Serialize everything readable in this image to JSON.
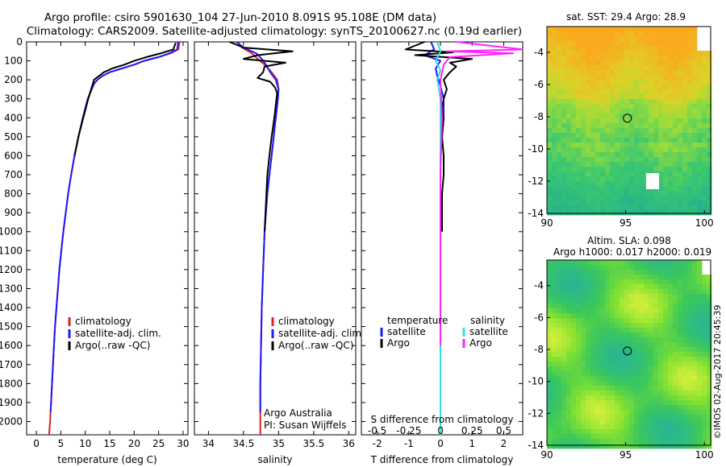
{
  "title_line1": "Argo profile: csiro 5901630_104 27-Jun-2010 8.091S 95.108E (DM data)",
  "title_line2": "Climatology: CARS2009. Satellite-adjusted climatology: synTS_20100627.nc (0.19d earlier)",
  "credit": "Argo Australia",
  "pi": "PI: Susan Wijffels",
  "stamp": "©IMOS 02-Aug-2017 20:45:39",
  "colors": {
    "climatology": "#e02020",
    "satellite": "#1a1aff",
    "argo": "#000000",
    "salinity_sat": "#30e0e0",
    "salinity_argo": "#ff20ff"
  },
  "chart_data": [
    {
      "id": "temperature",
      "type": "line",
      "xlabel": "temperature (deg C)",
      "ylabel": "",
      "xlim": [
        -2,
        31
      ],
      "ylim": [
        2070,
        0
      ],
      "xticks": [
        "0",
        "5",
        "10",
        "15",
        "20",
        "25",
        "30"
      ],
      "xtick_values": [
        0,
        5,
        10,
        15,
        20,
        25,
        30
      ],
      "yticks": [
        "0",
        "100",
        "200",
        "300",
        "400",
        "500",
        "600",
        "700",
        "800",
        "900",
        "1000",
        "1100",
        "1200",
        "1300",
        "1400",
        "1500",
        "1600",
        "1700",
        "1800",
        "1900",
        "2000"
      ],
      "ytick_values": [
        0,
        100,
        200,
        300,
        400,
        500,
        600,
        700,
        800,
        900,
        1000,
        1100,
        1200,
        1300,
        1400,
        1500,
        1600,
        1700,
        1800,
        1900,
        2000
      ],
      "legend": [
        "climatology",
        "satellite-adj. clim.",
        "Argo(..raw -QC)"
      ],
      "series": [
        {
          "name": "climatology",
          "color": "#e02020",
          "x": [
            29.3,
            29.0,
            27.5,
            25,
            22,
            20,
            17.5,
            15,
            13.5,
            12.5,
            11.8,
            10.5,
            9.5,
            8.6,
            7.8,
            7.1,
            6.5,
            6.0,
            5.5,
            5.1,
            4.7,
            4.4,
            4.1,
            3.8,
            3.6,
            3.4,
            3.2,
            3.0,
            2.9,
            2.8,
            2.7,
            2.6
          ],
          "y": [
            0,
            40,
            60,
            80,
            100,
            120,
            140,
            160,
            180,
            200,
            220,
            300,
            400,
            500,
            600,
            700,
            800,
            900,
            1000,
            1100,
            1200,
            1300,
            1400,
            1500,
            1600,
            1700,
            1800,
            1900,
            1950,
            2000,
            2030,
            2070
          ]
        },
        {
          "name": "satellite-adj. clim.",
          "color": "#1a1aff",
          "x": [
            29.0,
            28.8,
            27.2,
            25,
            22,
            20,
            17.5,
            15,
            13.5,
            12.5,
            11.8,
            10.5,
            9.5,
            8.6,
            7.8,
            7.1,
            6.5,
            6.0,
            5.5,
            5.1,
            4.7,
            4.4,
            4.1,
            3.8,
            3.6,
            3.4,
            3.2,
            3.0,
            2.9
          ],
          "y": [
            0,
            40,
            60,
            80,
            100,
            120,
            140,
            160,
            180,
            200,
            220,
            300,
            400,
            500,
            600,
            700,
            800,
            900,
            1000,
            1100,
            1200,
            1300,
            1400,
            1500,
            1600,
            1700,
            1800,
            1900,
            1950
          ]
        },
        {
          "name": "Argo(..raw -QC)",
          "color": "#000000",
          "x": [
            28.5,
            28.0,
            25.5,
            22.5,
            20,
            18,
            15.5,
            13.8,
            12.8,
            11.8,
            10.6,
            9.6,
            8.6,
            7.8
          ],
          "y": [
            5,
            40,
            60,
            80,
            100,
            120,
            140,
            160,
            180,
            200,
            300,
            400,
            500,
            600
          ]
        }
      ]
    },
    {
      "id": "salinity",
      "type": "line",
      "xlabel": "salinity",
      "xlim": [
        33.8,
        36.1
      ],
      "ylim": [
        2070,
        0
      ],
      "xticks": [
        "34",
        "34.5",
        "35",
        "35.5",
        "36"
      ],
      "xtick_values": [
        34,
        34.5,
        35,
        35.5,
        36
      ],
      "legend": [
        "climatology",
        "satellite-adj. clim.",
        "Argo(..raw -QC)"
      ],
      "series": [
        {
          "name": "climatology",
          "color": "#e02020",
          "x": [
            34.42,
            34.48,
            34.62,
            34.7,
            34.8,
            34.9,
            34.98,
            35.0,
            34.99,
            34.96,
            34.93,
            34.9,
            34.87,
            34.84,
            34.82,
            34.8,
            34.78,
            34.76,
            34.75,
            34.74,
            34.74
          ],
          "y": [
            0,
            30,
            60,
            90,
            120,
            160,
            200,
            250,
            300,
            400,
            500,
            600,
            700,
            800,
            900,
            1000,
            1200,
            1400,
            1600,
            1800,
            2070
          ]
        },
        {
          "name": "satellite-adj. clim.",
          "color": "#1a1aff",
          "x": [
            34.4,
            34.5,
            34.68,
            34.76,
            34.82,
            34.88,
            34.96,
            35.0,
            34.99,
            34.96,
            34.93,
            34.9,
            34.87,
            34.84,
            34.82,
            34.8,
            34.78,
            34.76,
            34.75,
            34.74,
            34.74
          ],
          "y": [
            0,
            30,
            60,
            90,
            120,
            160,
            200,
            250,
            300,
            400,
            500,
            600,
            700,
            800,
            900,
            1000,
            1200,
            1400,
            1600,
            1800,
            1950
          ]
        },
        {
          "name": "Argo(..raw -QC)",
          "color": "#000000",
          "x": [
            34.3,
            34.5,
            35.2,
            34.7,
            34.5,
            35.1,
            34.8,
            34.78,
            34.7,
            34.88,
            34.95,
            34.98,
            34.97,
            34.94,
            34.9,
            34.87,
            34.84,
            34.8
          ],
          "y": [
            0,
            30,
            50,
            70,
            90,
            110,
            130,
            160,
            190,
            210,
            240,
            270,
            300,
            400,
            500,
            600,
            700,
            1000
          ]
        }
      ]
    },
    {
      "id": "difference",
      "type": "line",
      "xlabel": "T difference from climatology",
      "xlabel_top": "S difference from climatology",
      "xlim": [
        -2.5,
        2.6
      ],
      "ylim": [
        2070,
        0
      ],
      "xticks": [
        "-2",
        "-1",
        "0",
        "1",
        "2"
      ],
      "xtick_values": [
        -2,
        -1,
        0,
        1,
        2
      ],
      "sticks": [
        "-0.5",
        "-0.25",
        "0",
        "0.25",
        "0.5"
      ],
      "stick_values": [
        -2,
        -1,
        0,
        1,
        2
      ],
      "legend_temperature": [
        "temperature",
        "satellite",
        "Argo"
      ],
      "legend_salinity": [
        "salinity",
        "satellite",
        "Argo"
      ],
      "series": [
        {
          "name": "temperature satellite",
          "color": "#1a1aff",
          "x": [
            -0.3,
            -0.2,
            -0.5,
            0.0,
            -0.15,
            -0.1,
            0.0,
            0.1,
            0.1,
            0.05,
            0.0,
            0.0,
            0.0,
            0.0
          ],
          "y": [
            0,
            40,
            70,
            100,
            140,
            180,
            230,
            300,
            400,
            500,
            600,
            800,
            1000,
            2070
          ]
        },
        {
          "name": "temperature Argo",
          "color": "#000000",
          "x": [
            -0.5,
            -1.1,
            0.4,
            -0.8,
            1.0,
            0.3,
            0.5,
            0.3,
            0.1,
            0.2,
            0.1,
            0.05,
            0.1,
            0.05,
            0.1,
            0.1,
            0.05,
            0.05
          ],
          "y": [
            0,
            40,
            55,
            70,
            90,
            110,
            130,
            160,
            200,
            250,
            300,
            350,
            400,
            500,
            600,
            700,
            800,
            1000
          ]
        },
        {
          "name": "salinity satellite",
          "color": "#30e0e0",
          "x": [
            -0.1,
            0.0,
            -0.15,
            0.0,
            -0.1,
            0.0,
            0.0,
            0.0,
            0.0,
            0.0
          ],
          "y": [
            0,
            50,
            100,
            150,
            200,
            300,
            500,
            1000,
            1500,
            2070
          ]
        },
        {
          "name": "salinity Argo",
          "color": "#ff20ff",
          "x": [
            0.5,
            2.6,
            0.2,
            2.3,
            0.3,
            0.1,
            0.0,
            0.05,
            0.0,
            0.0,
            0.0
          ],
          "y": [
            0,
            40,
            50,
            60,
            80,
            120,
            200,
            400,
            700,
            1000,
            1600
          ]
        }
      ]
    },
    {
      "id": "sst-map",
      "type": "heatmap",
      "title": "sat. SST: 29.4  Argo: 28.9",
      "xlim": [
        90,
        100.4
      ],
      "ylim": [
        -14,
        -2.4
      ],
      "xticks": [
        "90",
        "95",
        "100"
      ],
      "xtick_values": [
        90,
        95,
        100
      ],
      "yticks": [
        "-4",
        "-6",
        "-8",
        "-10",
        "-12",
        "-14"
      ],
      "ytick_values": [
        -4,
        -6,
        -8,
        -10,
        -12,
        -14
      ],
      "argo_position": {
        "lon": 95.108,
        "lat": -8.091
      }
    },
    {
      "id": "sla-map",
      "type": "heatmap",
      "title": "Altim. SLA: 0.098",
      "subtitle": "Argo h1000: 0.017 h2000: 0.019",
      "xlim": [
        90,
        100.4
      ],
      "ylim": [
        -14,
        -2.4
      ],
      "xticks": [
        "90",
        "95",
        "100"
      ],
      "xtick_values": [
        90,
        95,
        100
      ],
      "yticks": [
        "-4",
        "-6",
        "-8",
        "-10",
        "-12",
        "-14"
      ],
      "ytick_values": [
        -4,
        -6,
        -8,
        -10,
        -12,
        -14
      ],
      "argo_position": {
        "lon": 95.108,
        "lat": -8.091
      }
    }
  ]
}
